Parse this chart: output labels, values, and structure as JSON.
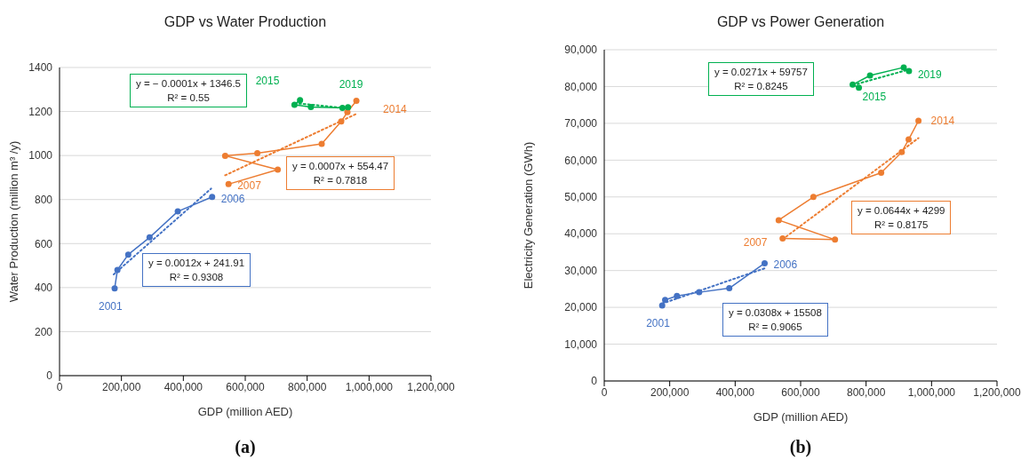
{
  "chart_data": [
    {
      "type": "line",
      "title": "GDP vs Water Production",
      "xlabel": "GDP (million AED)",
      "ylabel": "Water Production (million m³ /y)",
      "xlim": [
        0,
        1200000
      ],
      "ylim": [
        0,
        1400
      ],
      "xticks": [
        0,
        {
          "value": 200000,
          "label": "200,000"
        },
        {
          "value": 400000,
          "label": "400,000"
        },
        {
          "value": 600000,
          "label": "600,000"
        },
        {
          "value": 800000,
          "label": "800,000"
        },
        {
          "value": 1000000,
          "label": "1,000,000"
        },
        {
          "value": 1200000,
          "label": "1,200,000"
        }
      ],
      "yticks": [
        0,
        200,
        400,
        600,
        800,
        1000,
        1200,
        1400
      ],
      "grid": "y",
      "marker": "circle",
      "line_style": "solid",
      "series": [
        {
          "color": "#4472c4",
          "x": [
            178000,
            187000,
            222000,
            291000,
            382000,
            493000
          ],
          "values": [
            396,
            480,
            550,
            628,
            746,
            812
          ]
        },
        {
          "color": "#ed7d31",
          "x": [
            546000,
            705000,
            535000,
            639000,
            847000,
            910000,
            930000,
            959000
          ],
          "values": [
            870,
            936,
            999,
            1011,
            1053,
            1155,
            1197,
            1249
          ]
        },
        {
          "color": "#00b050",
          "x": [
            777000,
            759000,
            812000,
            914000,
            932000
          ],
          "values": [
            1252,
            1231,
            1220,
            1216,
            1219
          ]
        },
        {
          "type": "line",
          "color": "#4472c4",
          "line_style": "dotted",
          "marker": "none",
          "x": [
            175000,
            490000
          ],
          "values": [
            460,
            850
          ]
        },
        {
          "type": "line",
          "color": "#ed7d31",
          "line_style": "dotted",
          "marker": "none",
          "x": [
            535000,
            960000
          ],
          "values": [
            910,
            1190
          ]
        },
        {
          "type": "line",
          "color": "#00b050",
          "line_style": "dotted",
          "marker": "none",
          "x": [
            760000,
            935000
          ],
          "values": [
            1238,
            1214
          ]
        }
      ],
      "annotations": [
        {
          "text": "2001",
          "x": 178000,
          "y": 396
        },
        {
          "text": "2006",
          "x": 493000,
          "y": 812
        },
        {
          "text": "2007",
          "x": 546000,
          "y": 870
        },
        {
          "text": "2014",
          "x": 959000,
          "y": 1249
        },
        {
          "text": "2015",
          "x": 777000,
          "y": 1252
        },
        {
          "text": "2019",
          "x": 932000,
          "y": 1219
        },
        "y = 0.0012x + 241.91\nR² = 0.9308",
        "y = 0.0007x + 554.47\nR² = 0.7818",
        "y = − 0.0001x + 1346.5\nR² = 0.55",
        "(a)"
      ]
    },
    {
      "type": "line",
      "title": "GDP vs Power Generation",
      "xlabel": "GDP (million AED)",
      "ylabel": "Electricity Generation (GWh)",
      "xlim": [
        0,
        1200000
      ],
      "ylim": [
        0,
        90000
      ],
      "xticks": [
        0,
        {
          "value": 200000,
          "label": "200,000"
        },
        {
          "value": 400000,
          "label": "400,000"
        },
        {
          "value": 600000,
          "label": "600,000"
        },
        {
          "value": 800000,
          "label": "800,000"
        },
        {
          "value": 1000000,
          "label": "1,000,000"
        },
        {
          "value": 1200000,
          "label": "1,200,000"
        }
      ],
      "yticks": [
        0,
        {
          "value": 10000,
          "label": "10,000"
        },
        {
          "value": 20000,
          "label": "20,000"
        },
        {
          "value": 30000,
          "label": "30,000"
        },
        {
          "value": 40000,
          "label": "40,000"
        },
        {
          "value": 50000,
          "label": "50,000"
        },
        {
          "value": 60000,
          "label": "60,000"
        },
        {
          "value": 70000,
          "label": "70,000"
        },
        {
          "value": 80000,
          "label": "80,000"
        },
        {
          "value": 90000,
          "label": "90,000"
        }
      ],
      "grid": "y",
      "marker": "circle",
      "line_style": "solid",
      "series": [
        {
          "color": "#4472c4",
          "x": [
            177000,
            186000,
            222000,
            290000,
            382000,
            490000
          ],
          "values": [
            20500,
            22000,
            23100,
            24100,
            25200,
            32000
          ]
        },
        {
          "color": "#ed7d31",
          "x": [
            545000,
            705000,
            533000,
            639000,
            846000,
            909000,
            930000,
            960000
          ],
          "values": [
            38700,
            38400,
            43700,
            50000,
            56600,
            62200,
            65600,
            70700
          ]
        },
        {
          "color": "#00b050",
          "x": [
            778000,
            759000,
            812000,
            915000,
            931000
          ],
          "values": [
            79700,
            80500,
            83000,
            85200,
            84200
          ]
        },
        {
          "type": "line",
          "color": "#4472c4",
          "line_style": "dotted",
          "marker": "none",
          "x": [
            176000,
            490000
          ],
          "values": [
            21000,
            30600
          ]
        },
        {
          "type": "line",
          "color": "#ed7d31",
          "line_style": "dotted",
          "marker": "none",
          "x": [
            545000,
            960000
          ],
          "values": [
            38500,
            66000
          ]
        },
        {
          "type": "line",
          "color": "#00b050",
          "line_style": "dotted",
          "marker": "none",
          "x": [
            760000,
            930000
          ],
          "values": [
            80400,
            84600
          ]
        }
      ],
      "annotations": [
        {
          "text": "2001",
          "x": 177000,
          "y": 20500
        },
        {
          "text": "2006",
          "x": 490000,
          "y": 32000
        },
        {
          "text": "2007",
          "x": 545000,
          "y": 38700
        },
        {
          "text": "2014",
          "x": 960000,
          "y": 70700
        },
        {
          "text": "2015",
          "x": 778000,
          "y": 79700
        },
        {
          "text": "2019",
          "x": 931000,
          "y": 84200
        },
        "y = 0.0308x + 15508\nR² = 0.9065",
        "y = 0.0644x + 4299\nR² = 0.8175",
        "y = 0.0271x + 59757\nR² = 0.8245",
        "(b)"
      ]
    }
  ]
}
